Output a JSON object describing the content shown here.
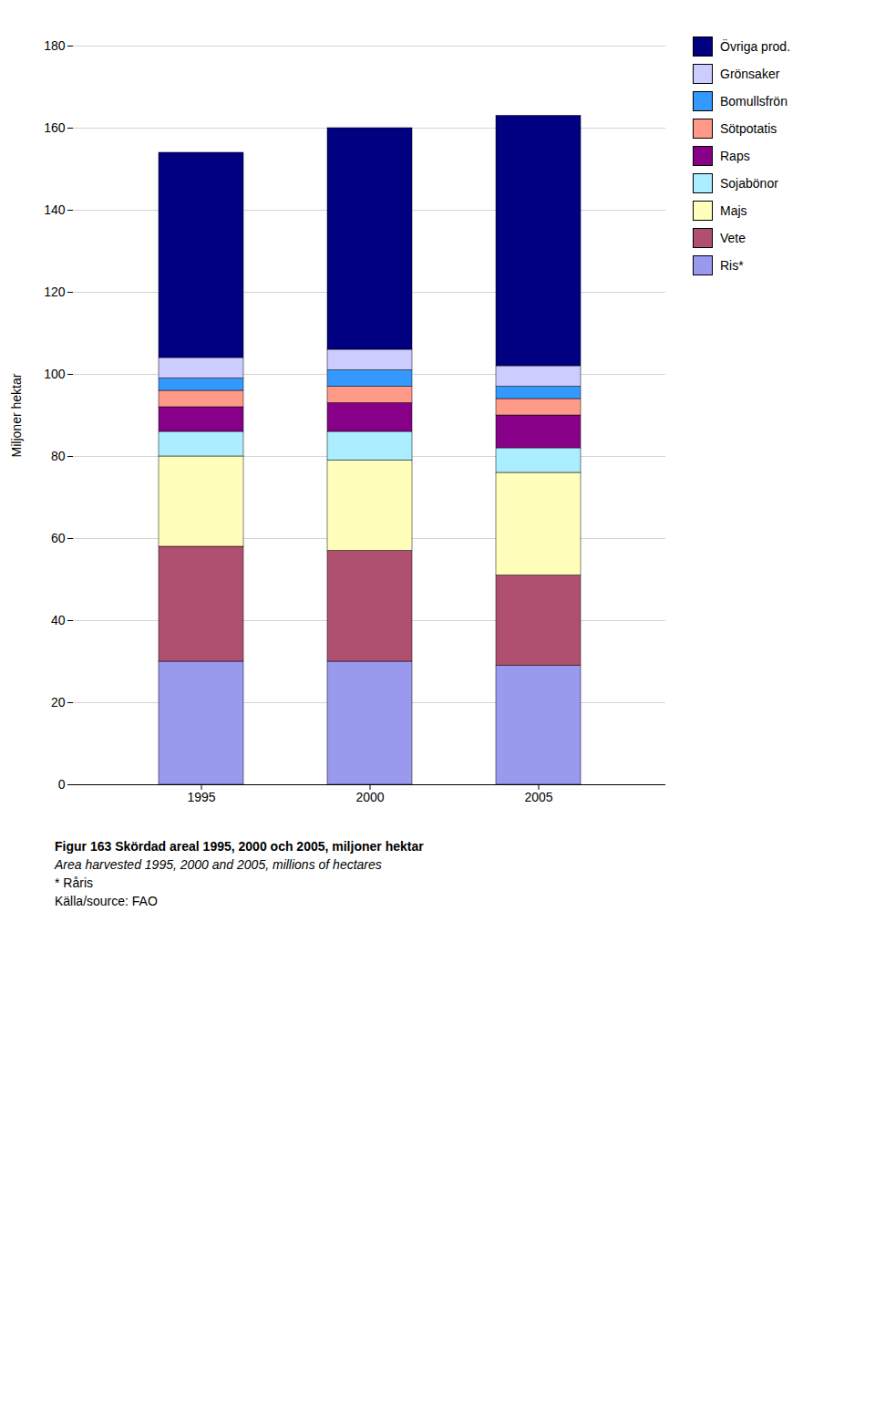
{
  "chart_data": {
    "type": "bar",
    "stacked": true,
    "categories": [
      "1995",
      "2000",
      "2005"
    ],
    "series": [
      {
        "name": "Ris*",
        "color": "#9999ee",
        "values": [
          30,
          30,
          29
        ]
      },
      {
        "name": "Vete",
        "color": "#b05070",
        "values": [
          28,
          27,
          22
        ]
      },
      {
        "name": "Majs",
        "color": "#ffffbb",
        "values": [
          22,
          22,
          25
        ]
      },
      {
        "name": "Sojabönor",
        "color": "#aaeeff",
        "values": [
          6,
          7,
          6
        ]
      },
      {
        "name": "Raps",
        "color": "#880088",
        "values": [
          6,
          7,
          8
        ]
      },
      {
        "name": "Sötpotatis",
        "color": "#ff9988",
        "values": [
          4,
          4,
          4
        ]
      },
      {
        "name": "Bomullsfrön",
        "color": "#3399ff",
        "values": [
          3,
          4,
          3
        ]
      },
      {
        "name": "Grönsaker",
        "color": "#ccccff",
        "values": [
          5,
          5,
          5
        ]
      },
      {
        "name": "Övriga prod.",
        "color": "#000080",
        "values": [
          50,
          54,
          61
        ]
      }
    ],
    "ylabel": "Miljoner hektar",
    "ylim": [
      0,
      180
    ],
    "yticks": [
      0,
      20,
      40,
      60,
      80,
      100,
      120,
      140,
      160,
      180
    ],
    "grid": true,
    "legend": "upper right",
    "annotations": [
      "Figur 163 Skördad areal 1995, 2000 och 2005, miljoner hektar",
      "Area harvested 1995, 2000 and 2005, millions of hectares",
      "* Råris",
      "Källa/source: FAO"
    ]
  }
}
